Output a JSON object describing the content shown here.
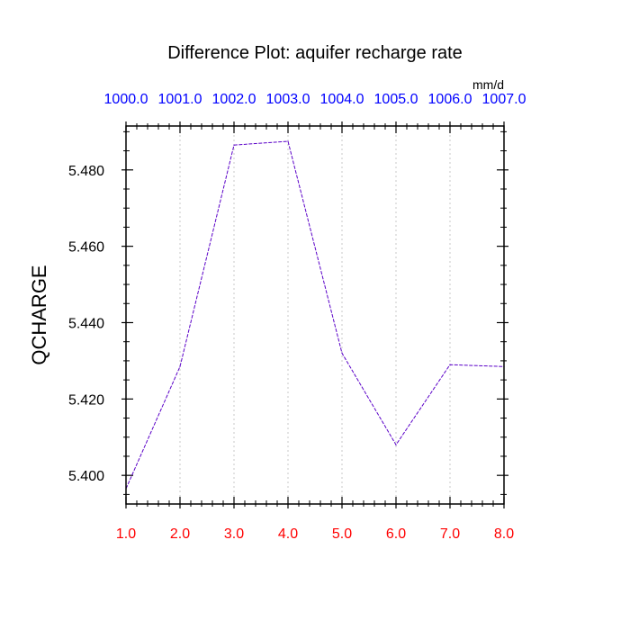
{
  "colors": {
    "background": "#ffffff",
    "frame": "#000000",
    "line": "#5a00c8",
    "bottom_ticks": "#ff0000",
    "top_ticks": "#0000ff",
    "grid": "#c8c8c8"
  },
  "chart_data": {
    "type": "line",
    "title": "Difference Plot: aquifer recharge rate",
    "units": "mm/d",
    "ylabel": "QCHARGE",
    "x": [
      1.0,
      2.0,
      3.0,
      4.0,
      5.0,
      6.0,
      7.0,
      8.0
    ],
    "series": [
      {
        "values": [
          5.3965,
          5.4285,
          5.4865,
          5.4875,
          5.432,
          5.408,
          5.429,
          5.4285
        ]
      }
    ],
    "xlim": [
      1.0,
      8.0
    ],
    "ylim": [
      5.3925,
      5.4915
    ],
    "x_tick_labels": [
      "1.0",
      "2.0",
      "3.0",
      "4.0",
      "5.0",
      "6.0",
      "7.0",
      "8.0"
    ],
    "x_tick_values": [
      1.0,
      2.0,
      3.0,
      4.0,
      5.0,
      6.0,
      7.0,
      8.0
    ],
    "top_tick_labels": [
      "1000.0",
      "1001.0",
      "1002.0",
      "1003.0",
      "1004.0",
      "1005.0",
      "1006.0",
      "1007.0"
    ],
    "y_tick_labels": [
      "5.400",
      "5.420",
      "5.440",
      "5.460",
      "5.480"
    ],
    "y_tick_values": [
      5.4,
      5.42,
      5.44,
      5.46,
      5.48
    ],
    "grid": "vertical dotted",
    "line_style": "dashed"
  }
}
